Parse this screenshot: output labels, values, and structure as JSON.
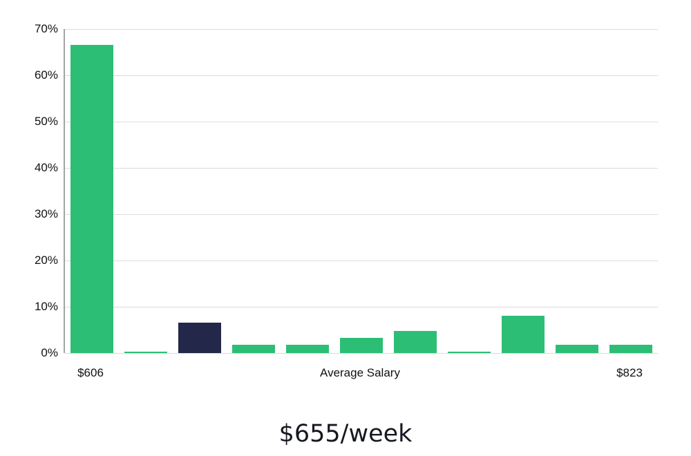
{
  "chart_data": {
    "type": "bar",
    "title": "$655/week",
    "categories": [
      "$606",
      "",
      "",
      "",
      "",
      "",
      "",
      "",
      "",
      "",
      "$823"
    ],
    "values": [
      66.5,
      0.3,
      6.5,
      1.8,
      1.8,
      3.3,
      4.8,
      0.3,
      8.1,
      1.8,
      1.8
    ],
    "highlight_index": 2,
    "y_axis": {
      "max": 70,
      "ticks": [
        0,
        10,
        20,
        30,
        40,
        50,
        60,
        70
      ],
      "tick_labels": [
        "0%",
        "10%",
        "20%",
        "30%",
        "40%",
        "50%",
        "60%",
        "70%"
      ]
    },
    "x_axis_labels": {
      "min": "$606",
      "center": "Average Salary",
      "max": "$823"
    },
    "colors": {
      "bar": "#2dbe76",
      "highlight": "#232749",
      "gridline": "#dcdcdc",
      "axis": "#a3a3a3",
      "text": "#111111"
    },
    "grid": true,
    "legend": "none"
  }
}
